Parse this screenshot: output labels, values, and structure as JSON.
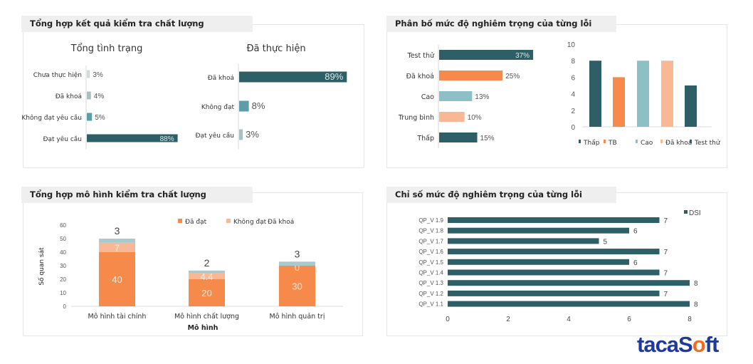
{
  "panels": [
    {
      "title": "Tổng hợp kết quả kiểm tra chất lượng"
    },
    {
      "title": "Phân bố mức độ nghiêm trọng của từng lỗi"
    },
    {
      "title": "Tổng hợp mô hình kiểm tra chất lượng"
    },
    {
      "title": "Chỉ số mức độ nghiêm trọng của từng lỗi"
    }
  ],
  "logo": {
    "text": "tacaSoft"
  },
  "colors": {
    "dark_teal": "#2f5f66",
    "orange": "#f58a4b",
    "light_teal": "#8cc0c4",
    "peach": "#f8b896",
    "light_grey": "#d5d9d9",
    "mid_teal": "#5b9dab",
    "grey_teal": "#a9bfc0"
  },
  "chart_data": [
    {
      "type": "bar",
      "orientation": "horizontal",
      "title": "Tổng tình trạng",
      "categories": [
        "Chưa thực hiện",
        "Đã khoá",
        "Không đạt yêu cầu",
        "Đạt yêu cầu"
      ],
      "values": [
        3,
        4,
        5,
        88
      ],
      "labels": [
        "3%",
        "4%",
        "5%",
        "88%"
      ],
      "colors": [
        "#d5d9d9",
        "#a9bfc0",
        "#5b9dab",
        "#2f5f66"
      ],
      "unit": "%"
    },
    {
      "type": "bar",
      "orientation": "horizontal",
      "title": "Đã thực hiện",
      "categories": [
        "Đã khoá",
        "Không đạt",
        "Đạt yêu cầu"
      ],
      "values": [
        89,
        8,
        3
      ],
      "labels": [
        "89%",
        "8%",
        "3%"
      ],
      "colors": [
        "#2f5f66",
        "#5b9dab",
        "#a9bfc0"
      ],
      "unit": "%"
    },
    {
      "type": "bar",
      "orientation": "horizontal",
      "title": "",
      "categories": [
        "Test thử",
        "Đã khoá",
        "Cao",
        "Trung bình",
        "Thấp"
      ],
      "values": [
        37,
        25,
        13,
        10,
        15
      ],
      "labels": [
        "37%",
        "25%",
        "13%",
        "10%",
        "15%"
      ],
      "colors": [
        "#2f5f66",
        "#f58a4b",
        "#8cc0c4",
        "#f8b896",
        "#2f5f66"
      ],
      "unit": "%"
    },
    {
      "type": "bar",
      "orientation": "vertical",
      "title": "",
      "categories": [
        "Thấp",
        "TB",
        "Cao",
        "Đã khoá",
        "Test thử"
      ],
      "values": [
        8,
        6,
        8,
        8,
        5
      ],
      "ylim": [
        0,
        10
      ],
      "yticks": [
        "0",
        "2",
        "4",
        "6",
        "8",
        "10"
      ],
      "colors": [
        "#2f5f66",
        "#f58a4b",
        "#8cc0c4",
        "#f8b896",
        "#2f5f66"
      ],
      "legend": "bottom"
    },
    {
      "type": "bar",
      "stacked": true,
      "orientation": "vertical",
      "title": "",
      "categories": [
        "Mô hình tài chính",
        "Mô hình chất lượng",
        "Mô hình quản trị"
      ],
      "series": [
        {
          "name": "Đã đạt",
          "values": [
            40,
            20,
            30
          ],
          "labels": [
            "40",
            "20",
            "30"
          ],
          "color": "#f58a4b"
        },
        {
          "name": "Không đạt",
          "values": [
            7,
            4.4,
            0
          ],
          "labels": [
            "7",
            "4.4",
            "0"
          ],
          "color": "#f8b896"
        },
        {
          "name": "Đã khoá",
          "values": [
            3,
            2,
            3
          ],
          "labels": [
            "3",
            "2",
            "3"
          ],
          "color": "#a9c9cc"
        }
      ],
      "xlabel": "Mô hình",
      "ylabel": "Số quan sát",
      "ylim": [
        0,
        60
      ],
      "yticks": [
        "0",
        "10",
        "20",
        "30",
        "40",
        "50",
        "60"
      ],
      "legend": "top"
    },
    {
      "type": "bar",
      "orientation": "horizontal",
      "title": "",
      "categories": [
        "QP_V 1.9",
        "QP_V 1.8",
        "QP_V 1.7",
        "QP_V 1.6",
        "QP_V 1.5",
        "QP_V 1.4",
        "QP_V 1.3",
        "QP_V 1.2",
        "QP_V 1.1"
      ],
      "series": [
        {
          "name": "DSI",
          "values": [
            7,
            6,
            5,
            7,
            6,
            7,
            8,
            7,
            8
          ],
          "labels": [
            "7",
            "6",
            "5",
            "7",
            "6",
            "7",
            "8",
            "7",
            "8"
          ],
          "color": "#2f5f66"
        }
      ],
      "xlim": [
        0,
        8
      ],
      "xticks": [
        "0",
        "2",
        "4",
        "6",
        "8"
      ],
      "legend": "top-right"
    }
  ]
}
